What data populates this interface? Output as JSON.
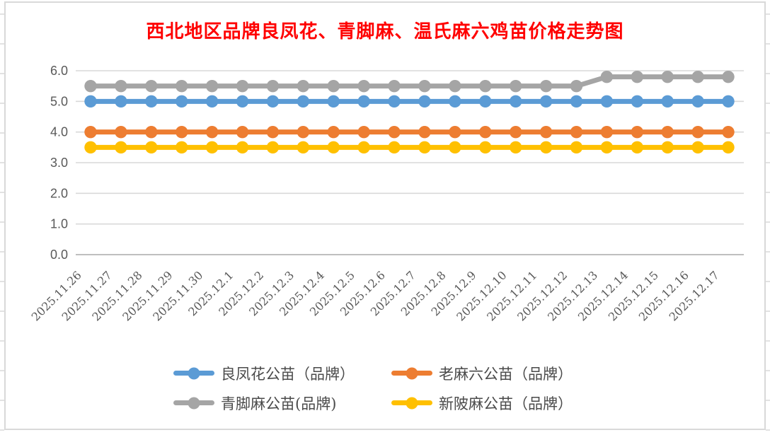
{
  "chart_data": {
    "type": "line",
    "title": "西北地区品牌良凤花、青脚麻、温氏麻六鸡苗价格走势图",
    "title_color": "#FF0000",
    "categories": [
      "2025.11.26",
      "2025.11.27",
      "2025.11.28",
      "2025.11.29",
      "2025.11.30",
      "2025.12.1",
      "2025.12.2",
      "2025.12.3",
      "2025.12.4",
      "2025.12.5",
      "2025.12.6",
      "2025.12.7",
      "2025.12.8",
      "2025.12.9",
      "2025.12.10",
      "2025.12.11",
      "2025.12.12",
      "2025.12.13",
      "2025.12.14",
      "2025.12.15",
      "2025.12.16",
      "2025.12.17"
    ],
    "series": [
      {
        "name": "良凤花公苗（品牌）",
        "color": "#5B9BD5",
        "values": [
          5.0,
          5.0,
          5.0,
          5.0,
          5.0,
          5.0,
          5.0,
          5.0,
          5.0,
          5.0,
          5.0,
          5.0,
          5.0,
          5.0,
          5.0,
          5.0,
          5.0,
          5.0,
          5.0,
          5.0,
          5.0,
          5.0
        ]
      },
      {
        "name": "老麻六公苗（品牌）",
        "color": "#ED7D31",
        "values": [
          4.0,
          4.0,
          4.0,
          4.0,
          4.0,
          4.0,
          4.0,
          4.0,
          4.0,
          4.0,
          4.0,
          4.0,
          4.0,
          4.0,
          4.0,
          4.0,
          4.0,
          4.0,
          4.0,
          4.0,
          4.0,
          4.0
        ]
      },
      {
        "name": "青脚麻公苗(品牌)",
        "color": "#A5A5A5",
        "values": [
          5.5,
          5.5,
          5.5,
          5.5,
          5.5,
          5.5,
          5.5,
          5.5,
          5.5,
          5.5,
          5.5,
          5.5,
          5.5,
          5.5,
          5.5,
          5.5,
          5.5,
          5.8,
          5.8,
          5.8,
          5.8,
          5.8
        ]
      },
      {
        "name": "新陂麻公苗（品牌）",
        "color": "#FFC000",
        "values": [
          3.5,
          3.5,
          3.5,
          3.5,
          3.5,
          3.5,
          3.5,
          3.5,
          3.5,
          3.5,
          3.5,
          3.5,
          3.5,
          3.5,
          3.5,
          3.5,
          3.5,
          3.5,
          3.5,
          3.5,
          3.5,
          3.5
        ]
      }
    ],
    "ylim": [
      0,
      6
    ],
    "y_ticks": [
      "0.0",
      "1.0",
      "2.0",
      "3.0",
      "4.0",
      "5.0",
      "6.0"
    ],
    "xlabel": "",
    "ylabel": "",
    "grid": true,
    "legend_position": "bottom",
    "legend_rows": [
      [
        0,
        1
      ],
      [
        2,
        3
      ]
    ]
  },
  "styles": {
    "frame_border": "#D9D9D9",
    "gridline": "#D9D9D9",
    "axis_line": "#BFBFBF",
    "tick_label": "#595959",
    "legend_text": "#4a4a4a",
    "background": "#FFFFFF"
  }
}
